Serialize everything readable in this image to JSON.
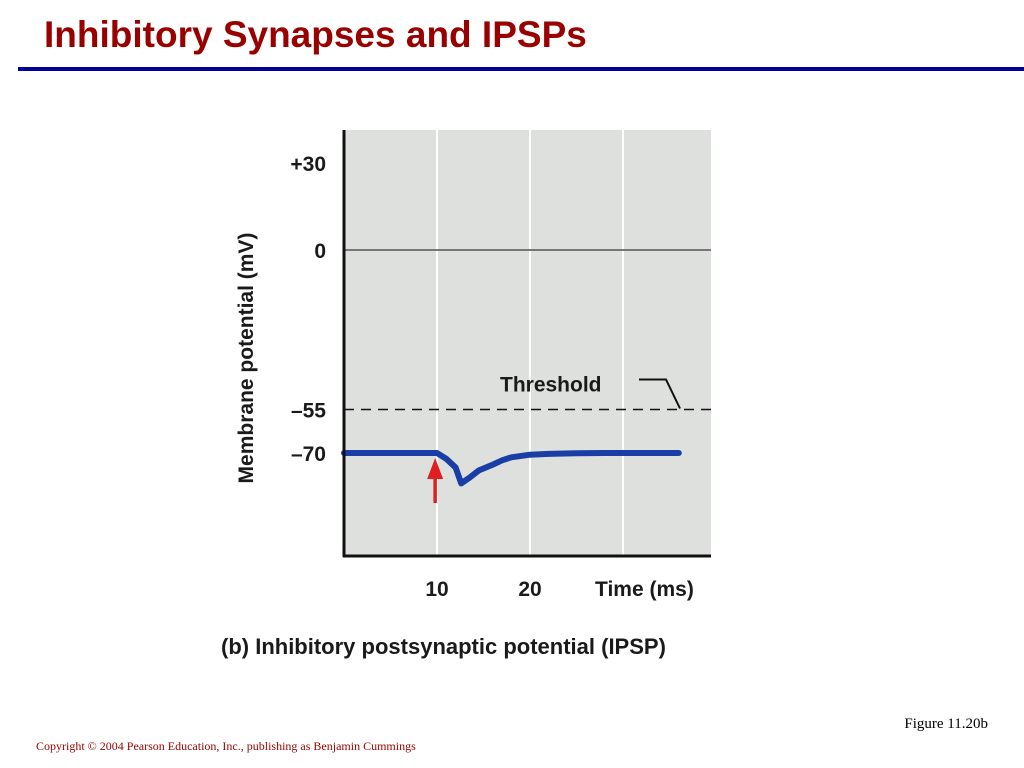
{
  "slide": {
    "title": "Inhibitory Synapses and IPSPs",
    "figure_ref": "Figure 11.20b",
    "copyright": "Copyright © 2004 Pearson Education, Inc., publishing as Benjamin Cummings"
  },
  "colors": {
    "title": "#990000",
    "rule": "#000099",
    "plot_bg": "#dde0dd",
    "trace": "#1a3da6",
    "arrow": "#e02020"
  },
  "chart_data": {
    "type": "line",
    "caption": "(b) Inhibitory postsynaptic potential (IPSP)",
    "ylabel": "Membrane potential (mV)",
    "xlabel": "Time (ms)",
    "xlim": [
      0,
      36
    ],
    "ylim": [
      -100,
      40
    ],
    "x_ticks": [
      10,
      20
    ],
    "y_ticks": [
      {
        "value": 30,
        "label": "+30"
      },
      {
        "value": 0,
        "label": "0"
      },
      {
        "value": -55,
        "label": "–55"
      },
      {
        "value": -70,
        "label": "–70"
      }
    ],
    "vertical_gridlines": [
      10,
      20,
      30
    ],
    "grid": true,
    "reference_lines": [
      {
        "name": "zero",
        "y": 0,
        "style": "solid"
      },
      {
        "name": "Threshold",
        "y": -55,
        "style": "dashed",
        "label": "Threshold"
      }
    ],
    "series": [
      {
        "values": [
          [
            0,
            -70
          ],
          [
            10,
            -70
          ],
          [
            11,
            -72
          ],
          [
            12,
            -75
          ],
          [
            12.6,
            -80.5
          ],
          [
            13.5,
            -78.5
          ],
          [
            14.5,
            -76
          ],
          [
            16,
            -74
          ],
          [
            17,
            -72.5
          ],
          [
            18,
            -71.5
          ],
          [
            20,
            -70.6
          ],
          [
            22,
            -70.3
          ],
          [
            25,
            -70.1
          ],
          [
            28,
            -70
          ],
          [
            36,
            -70
          ]
        ]
      }
    ],
    "annotations": [
      {
        "type": "arrow",
        "x": 9.8,
        "label": "stimulus"
      }
    ]
  }
}
